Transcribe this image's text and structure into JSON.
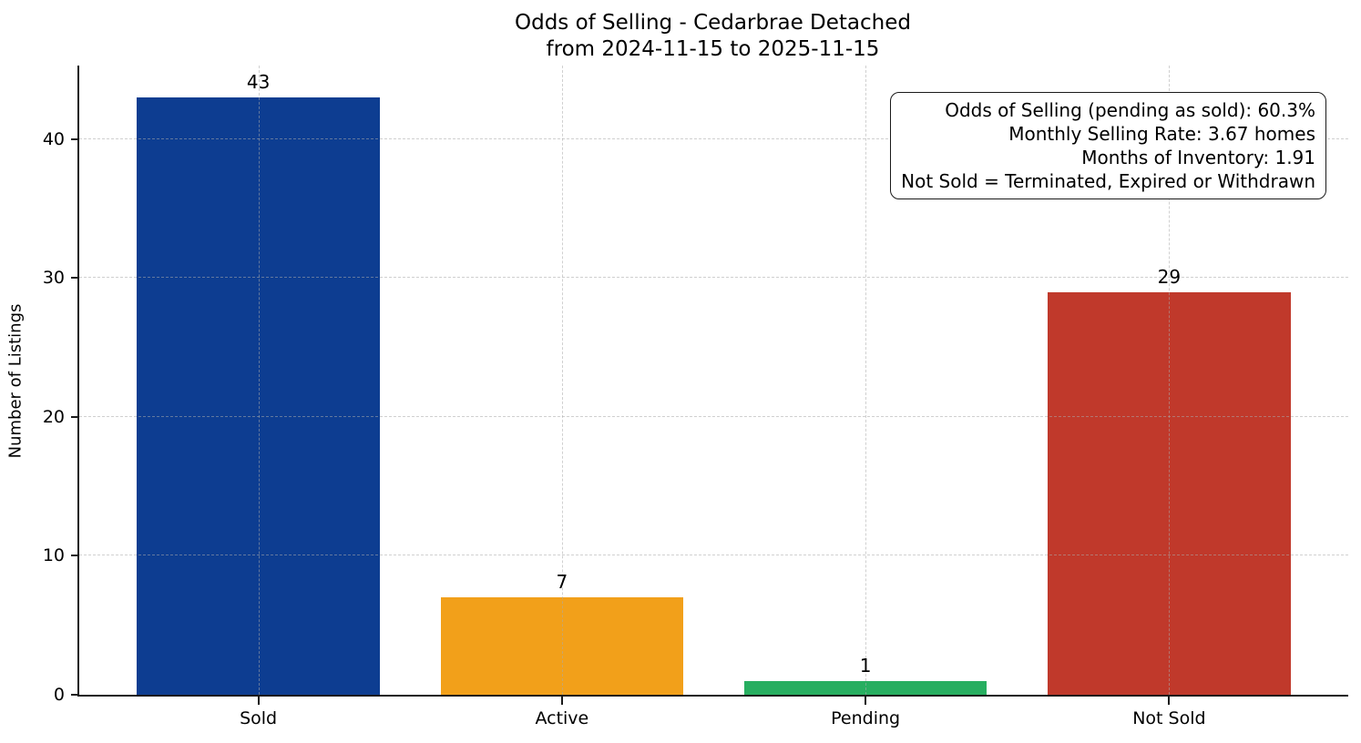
{
  "chart_data": {
    "type": "bar",
    "title": "Odds of Selling - Cedarbrae Detached",
    "subtitle": "from 2024-11-15 to 2025-11-15",
    "categories": [
      "Sold",
      "Active",
      "Pending",
      "Not Sold"
    ],
    "values": [
      43,
      7,
      1,
      29
    ],
    "bar_colors": [
      "#0d3d91",
      "#f2a01a",
      "#27ae60",
      "#c0392b"
    ],
    "xlabel": "",
    "ylabel": "Number of Listings",
    "ylim": [
      0,
      45.3
    ],
    "yticks": [
      0,
      10,
      20,
      30,
      40
    ],
    "grid": "both-dashed-light-gray",
    "legend": "none",
    "annotation": {
      "position": "top-right",
      "lines": [
        "Odds of Selling (pending as sold): 60.3%",
        "Monthly Selling Rate: 3.67 homes",
        "Months of Inventory: 1.91",
        "Not Sold = Terminated, Expired or Withdrawn"
      ]
    }
  }
}
